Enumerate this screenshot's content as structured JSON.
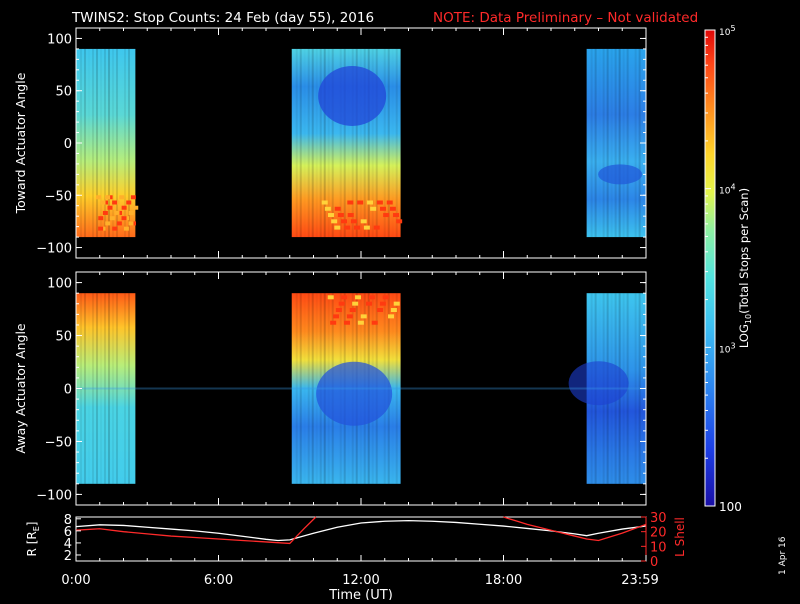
{
  "title": {
    "main": "TWINS2: Stop Counts: 24 Feb (day  55), 2016",
    "note": "NOTE: Data Preliminary – Not validated",
    "note_color": "#ff2a2a"
  },
  "colorbar": {
    "label_prefix": "LOG",
    "label_sub": "10",
    "label_suffix": "(Total Stops per Scan)",
    "ticks": [
      {
        "value": 100,
        "label": "100"
      },
      {
        "value": 1000,
        "label": "10^3"
      },
      {
        "value": 10000,
        "label": "10^4"
      },
      {
        "value": 100000,
        "label": "10^5"
      }
    ],
    "range": [
      100,
      100000
    ],
    "scale": "log"
  },
  "side_text": "1 Apr 16",
  "chart_data": [
    {
      "type": "heatmap",
      "ylabel": "Toward Actuator Angle",
      "y_ticks": [
        100,
        50,
        0,
        -50,
        -100
      ],
      "ylim": [
        -110,
        110
      ],
      "xlim_hours": [
        0,
        24
      ],
      "data_y_range": [
        -90,
        90
      ],
      "coverage": [
        {
          "start": "0:00",
          "end": "2:30"
        },
        {
          "start": "9:05",
          "end": "13:40"
        },
        {
          "start": "21:30",
          "end": "23:59"
        }
      ],
      "color_scale": "log10 Total Stops per Scan",
      "pattern": "toward"
    },
    {
      "type": "heatmap",
      "ylabel": "Away Actuator Angle",
      "y_ticks": [
        100,
        50,
        0,
        -50,
        -100
      ],
      "ylim": [
        -110,
        110
      ],
      "xlim_hours": [
        0,
        24
      ],
      "data_y_range": [
        -90,
        90
      ],
      "coverage": [
        {
          "start": "0:00",
          "end": "2:30"
        },
        {
          "start": "9:05",
          "end": "13:40"
        },
        {
          "start": "21:30",
          "end": "23:59"
        }
      ],
      "color_scale": "log10 Total Stops per Scan",
      "pattern": "away"
    },
    {
      "type": "line",
      "x_ticks": [
        "0:00",
        "6:00",
        "12:00",
        "18:00",
        "23:59"
      ],
      "xlabel": "Time (UT)",
      "y_left": {
        "label": "R [R",
        "label_sub": "E",
        "label_end": "]",
        "ticks": [
          2,
          4,
          6,
          8
        ],
        "ylim": [
          1,
          8.3
        ],
        "color": "#ffffff"
      },
      "y_right": {
        "label": "L Shell",
        "ticks": [
          0,
          10,
          20,
          30
        ],
        "ylim": [
          0,
          30
        ],
        "color": "#ff2a2a"
      },
      "series": [
        {
          "axis": "left",
          "color": "#ffffff",
          "x": [
            0,
            1,
            2,
            3,
            4,
            5,
            6,
            7,
            8,
            8.5,
            9,
            10,
            11,
            12,
            13,
            14,
            15,
            16,
            17,
            18,
            19,
            20,
            21,
            21.5,
            22,
            23,
            24
          ],
          "y": [
            6.7,
            7.0,
            6.9,
            6.6,
            6.3,
            6.0,
            5.6,
            5.1,
            4.6,
            4.4,
            4.5,
            5.6,
            6.6,
            7.3,
            7.6,
            7.7,
            7.6,
            7.4,
            7.1,
            6.8,
            6.4,
            6.0,
            5.5,
            5.2,
            5.6,
            6.3,
            6.8
          ]
        },
        {
          "axis": "right",
          "color": "#ff2a2a",
          "x": [
            0,
            1,
            2,
            3,
            4,
            5,
            6,
            7,
            8,
            8.5,
            9,
            9.6,
            10.1
          ],
          "y": [
            21,
            22,
            20,
            18.5,
            17,
            16,
            15,
            14,
            13,
            12.5,
            12,
            22,
            30
          ]
        },
        {
          "axis": "right",
          "color": "#ff2a2a",
          "x": [
            18.0,
            18.6,
            19,
            20,
            21,
            21.5,
            22,
            23,
            24
          ],
          "y": [
            30,
            27,
            25,
            21,
            17,
            15,
            14,
            19,
            25
          ]
        }
      ]
    }
  ]
}
